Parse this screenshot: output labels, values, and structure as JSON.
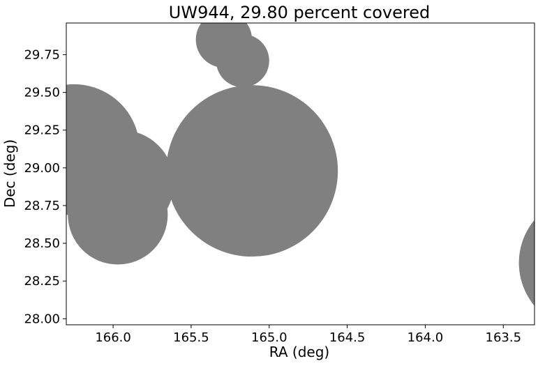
{
  "chart_data": {
    "type": "scatter",
    "title": "UW944, 29.80 percent covered",
    "xlabel": "RA (deg)",
    "ylabel": "Dec (deg)",
    "xlim": [
      166.3,
      163.3
    ],
    "ylim": [
      27.96,
      29.96
    ],
    "x_inverted": true,
    "grid": false,
    "legend": "none",
    "x_ticks": [
      {
        "value": 166.0,
        "label": "166.0"
      },
      {
        "value": 165.5,
        "label": "165.5"
      },
      {
        "value": 165.0,
        "label": "165.0"
      },
      {
        "value": 164.5,
        "label": "164.5"
      },
      {
        "value": 164.0,
        "label": "164.0"
      },
      {
        "value": 163.5,
        "label": "163.5"
      }
    ],
    "y_ticks": [
      {
        "value": 28.0,
        "label": "28.00"
      },
      {
        "value": 28.25,
        "label": "28.25"
      },
      {
        "value": 28.5,
        "label": "28.50"
      },
      {
        "value": 28.75,
        "label": "28.75"
      },
      {
        "value": 29.0,
        "label": "29.00"
      },
      {
        "value": 29.25,
        "label": "29.25"
      },
      {
        "value": 29.5,
        "label": "29.50"
      },
      {
        "value": 29.75,
        "label": "29.75"
      }
    ],
    "circles": [
      {
        "ra": 166.25,
        "dec": 29.12,
        "radius": 0.42
      },
      {
        "ra": 165.95,
        "dec": 28.9,
        "radius": 0.34
      },
      {
        "ra": 165.97,
        "dec": 28.69,
        "radius": 0.32
      },
      {
        "ra": 165.29,
        "dec": 29.85,
        "radius": 0.18
      },
      {
        "ra": 165.17,
        "dec": 29.71,
        "radius": 0.17
      },
      {
        "ra": 164.92,
        "dec": 28.71,
        "radius": 0.17
      },
      {
        "ra": 165.11,
        "dec": 28.98,
        "radius": 0.55
      },
      {
        "ra": 162.97,
        "dec": 28.37,
        "radius": 0.43
      }
    ],
    "fill_color": "#808080",
    "axes_color": "#000000"
  }
}
